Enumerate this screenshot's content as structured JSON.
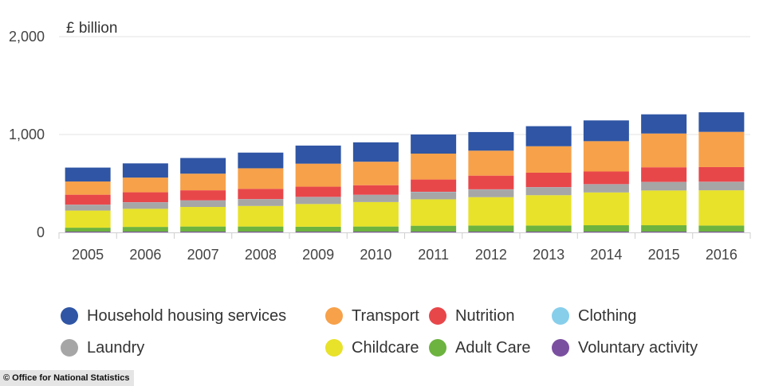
{
  "chart_data": {
    "type": "bar",
    "stacked": true,
    "unit_label": "£ billion",
    "categories": [
      "2005",
      "2006",
      "2007",
      "2008",
      "2009",
      "2010",
      "2011",
      "2012",
      "2013",
      "2014",
      "2015",
      "2016"
    ],
    "ylim": [
      0,
      2000
    ],
    "yticks": [
      0,
      1000,
      2000
    ],
    "ytick_labels": [
      "0",
      "1,000",
      "2,000"
    ],
    "grid": "horizontal",
    "legend_position": "bottom",
    "series": [
      {
        "name": "Voluntary activity",
        "color": "#7b4fa0",
        "values": [
          8,
          8,
          8,
          8,
          8,
          8,
          8,
          8,
          8,
          8,
          8,
          8
        ]
      },
      {
        "name": "Adult Care",
        "color": "#6cb33f",
        "values": [
          40,
          48,
          52,
          52,
          50,
          52,
          60,
          62,
          62,
          65,
          65,
          62
        ]
      },
      {
        "name": "Childcare",
        "color": "#e8e22a",
        "values": [
          175,
          185,
          200,
          210,
          232,
          250,
          270,
          290,
          310,
          335,
          355,
          360
        ]
      },
      {
        "name": "Laundry",
        "color": "#a6a6a6",
        "values": [
          58,
          65,
          65,
          68,
          70,
          72,
          75,
          78,
          80,
          82,
          85,
          85
        ]
      },
      {
        "name": "Clothing",
        "color": "#87ceeb",
        "values": [
          2,
          2,
          2,
          2,
          2,
          2,
          2,
          2,
          2,
          2,
          2,
          2
        ]
      },
      {
        "name": "Nutrition",
        "color": "#e8474a",
        "values": [
          102,
          102,
          103,
          105,
          105,
          98,
          125,
          140,
          148,
          130,
          150,
          150
        ]
      },
      {
        "name": "Transport",
        "color": "#f7a14a",
        "values": [
          135,
          150,
          170,
          210,
          235,
          240,
          265,
          255,
          270,
          310,
          345,
          360
        ]
      },
      {
        "name": "Household housing services",
        "color": "#2f55a4",
        "values": [
          142,
          145,
          160,
          160,
          185,
          198,
          195,
          190,
          205,
          212,
          196,
          200
        ]
      }
    ]
  },
  "legend": {
    "items": [
      {
        "label": "Household housing services",
        "color": "#2f55a4",
        "icon": "circle"
      },
      {
        "label": "Transport",
        "color": "#f7a14a",
        "icon": "circle"
      },
      {
        "label": "Nutrition",
        "color": "#e8474a",
        "icon": "circle"
      },
      {
        "label": "Clothing",
        "color": "#87ceeb",
        "icon": "circle"
      },
      {
        "label": "Laundry",
        "color": "#a6a6a6",
        "icon": "circle"
      },
      {
        "label": "Childcare",
        "color": "#e8e22a",
        "icon": "circle"
      },
      {
        "label": "Adult Care",
        "color": "#6cb33f",
        "icon": "circle"
      },
      {
        "label": "Voluntary activity",
        "color": "#7b4fa0",
        "icon": "circle"
      }
    ]
  },
  "source": {
    "text": "© Office for National Statistics"
  }
}
